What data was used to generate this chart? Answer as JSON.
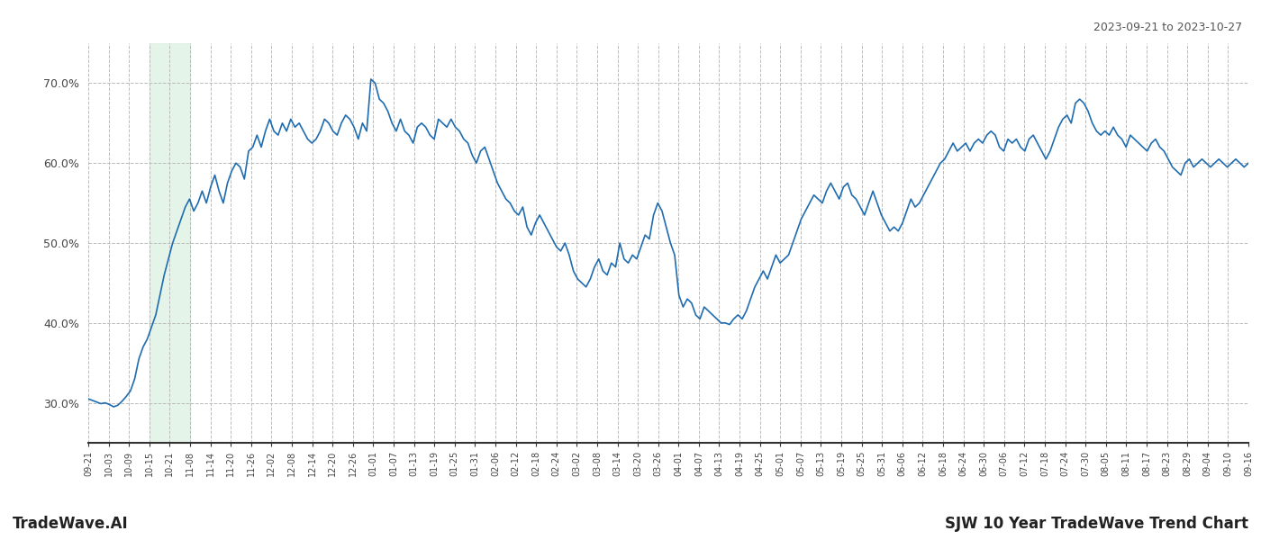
{
  "title_right": "2023-09-21 to 2023-10-27",
  "footer_left": "TradeWave.AI",
  "footer_right": "SJW 10 Year TradeWave Trend Chart",
  "ylim": [
    25,
    75
  ],
  "yticks": [
    30.0,
    40.0,
    50.0,
    60.0,
    70.0
  ],
  "ytick_labels": [
    "30.0%",
    "40.0%",
    "50.0%",
    "60.0%",
    "70.0%"
  ],
  "line_color": "#1f6cb0",
  "line_width": 1.2,
  "shade_color": "#d4edda",
  "shade_alpha": 0.6,
  "background_color": "#ffffff",
  "grid_color": "#bbbbbb",
  "grid_style": "--",
  "x_labels": [
    "09-21",
    "10-03",
    "10-09",
    "10-15",
    "10-21",
    "11-08",
    "11-14",
    "11-20",
    "11-26",
    "12-02",
    "12-08",
    "12-14",
    "12-20",
    "12-26",
    "01-01",
    "01-07",
    "01-13",
    "01-19",
    "01-25",
    "01-31",
    "02-06",
    "02-12",
    "02-18",
    "02-24",
    "03-02",
    "03-08",
    "03-14",
    "03-20",
    "03-26",
    "04-01",
    "04-07",
    "04-13",
    "04-19",
    "04-25",
    "05-01",
    "05-07",
    "05-13",
    "05-19",
    "05-25",
    "05-31",
    "06-06",
    "06-12",
    "06-18",
    "06-24",
    "06-30",
    "07-06",
    "07-12",
    "07-18",
    "07-24",
    "07-30",
    "08-05",
    "08-11",
    "08-17",
    "08-23",
    "08-29",
    "09-04",
    "09-10",
    "09-16"
  ],
  "shade_start_label": "10-15",
  "shade_end_label": "11-08",
  "values": [
    30.5,
    30.3,
    30.1,
    29.9,
    30.0,
    29.8,
    29.5,
    29.7,
    30.2,
    30.8,
    31.5,
    33.0,
    35.5,
    37.0,
    38.0,
    39.5,
    41.0,
    43.5,
    46.0,
    48.0,
    50.0,
    51.5,
    53.0,
    54.5,
    55.5,
    54.0,
    55.0,
    56.5,
    55.0,
    57.0,
    58.5,
    56.5,
    55.0,
    57.5,
    59.0,
    60.0,
    59.5,
    58.0,
    61.5,
    62.0,
    63.5,
    62.0,
    64.0,
    65.5,
    64.0,
    63.5,
    65.0,
    64.0,
    65.5,
    64.5,
    65.0,
    64.0,
    63.0,
    62.5,
    63.0,
    64.0,
    65.5,
    65.0,
    64.0,
    63.5,
    65.0,
    66.0,
    65.5,
    64.5,
    63.0,
    65.0,
    64.0,
    70.5,
    70.0,
    68.0,
    67.5,
    66.5,
    65.0,
    64.0,
    65.5,
    64.0,
    63.5,
    62.5,
    64.5,
    65.0,
    64.5,
    63.5,
    63.0,
    65.5,
    65.0,
    64.5,
    65.5,
    64.5,
    64.0,
    63.0,
    62.5,
    61.0,
    60.0,
    61.5,
    62.0,
    60.5,
    59.0,
    57.5,
    56.5,
    55.5,
    55.0,
    54.0,
    53.5,
    54.5,
    52.0,
    51.0,
    52.5,
    53.5,
    52.5,
    51.5,
    50.5,
    49.5,
    49.0,
    50.0,
    48.5,
    46.5,
    45.5,
    45.0,
    44.5,
    45.5,
    47.0,
    48.0,
    46.5,
    46.0,
    47.5,
    47.0,
    50.0,
    48.0,
    47.5,
    48.5,
    48.0,
    49.5,
    51.0,
    50.5,
    53.5,
    55.0,
    54.0,
    52.0,
    50.0,
    48.5,
    43.5,
    42.0,
    43.0,
    42.5,
    41.0,
    40.5,
    42.0,
    41.5,
    41.0,
    40.5,
    40.0,
    40.0,
    39.8,
    40.5,
    41.0,
    40.5,
    41.5,
    43.0,
    44.5,
    45.5,
    46.5,
    45.5,
    47.0,
    48.5,
    47.5,
    48.0,
    48.5,
    50.0,
    51.5,
    53.0,
    54.0,
    55.0,
    56.0,
    55.5,
    55.0,
    56.5,
    57.5,
    56.5,
    55.5,
    57.0,
    57.5,
    56.0,
    55.5,
    54.5,
    53.5,
    55.0,
    56.5,
    55.0,
    53.5,
    52.5,
    51.5,
    52.0,
    51.5,
    52.5,
    54.0,
    55.5,
    54.5,
    55.0,
    56.0,
    57.0,
    58.0,
    59.0,
    60.0,
    60.5,
    61.5,
    62.5,
    61.5,
    62.0,
    62.5,
    61.5,
    62.5,
    63.0,
    62.5,
    63.5,
    64.0,
    63.5,
    62.0,
    61.5,
    63.0,
    62.5,
    63.0,
    62.0,
    61.5,
    63.0,
    63.5,
    62.5,
    61.5,
    60.5,
    61.5,
    63.0,
    64.5,
    65.5,
    66.0,
    65.0,
    67.5,
    68.0,
    67.5,
    66.5,
    65.0,
    64.0,
    63.5,
    64.0,
    63.5,
    64.5,
    63.5,
    63.0,
    62.0,
    63.5,
    63.0,
    62.5,
    62.0,
    61.5,
    62.5,
    63.0,
    62.0,
    61.5,
    60.5,
    59.5,
    59.0,
    58.5,
    60.0,
    60.5,
    59.5,
    60.0,
    60.5,
    60.0,
    59.5,
    60.0,
    60.5,
    60.0,
    59.5,
    60.0,
    60.5,
    60.0,
    59.5,
    60.0
  ]
}
